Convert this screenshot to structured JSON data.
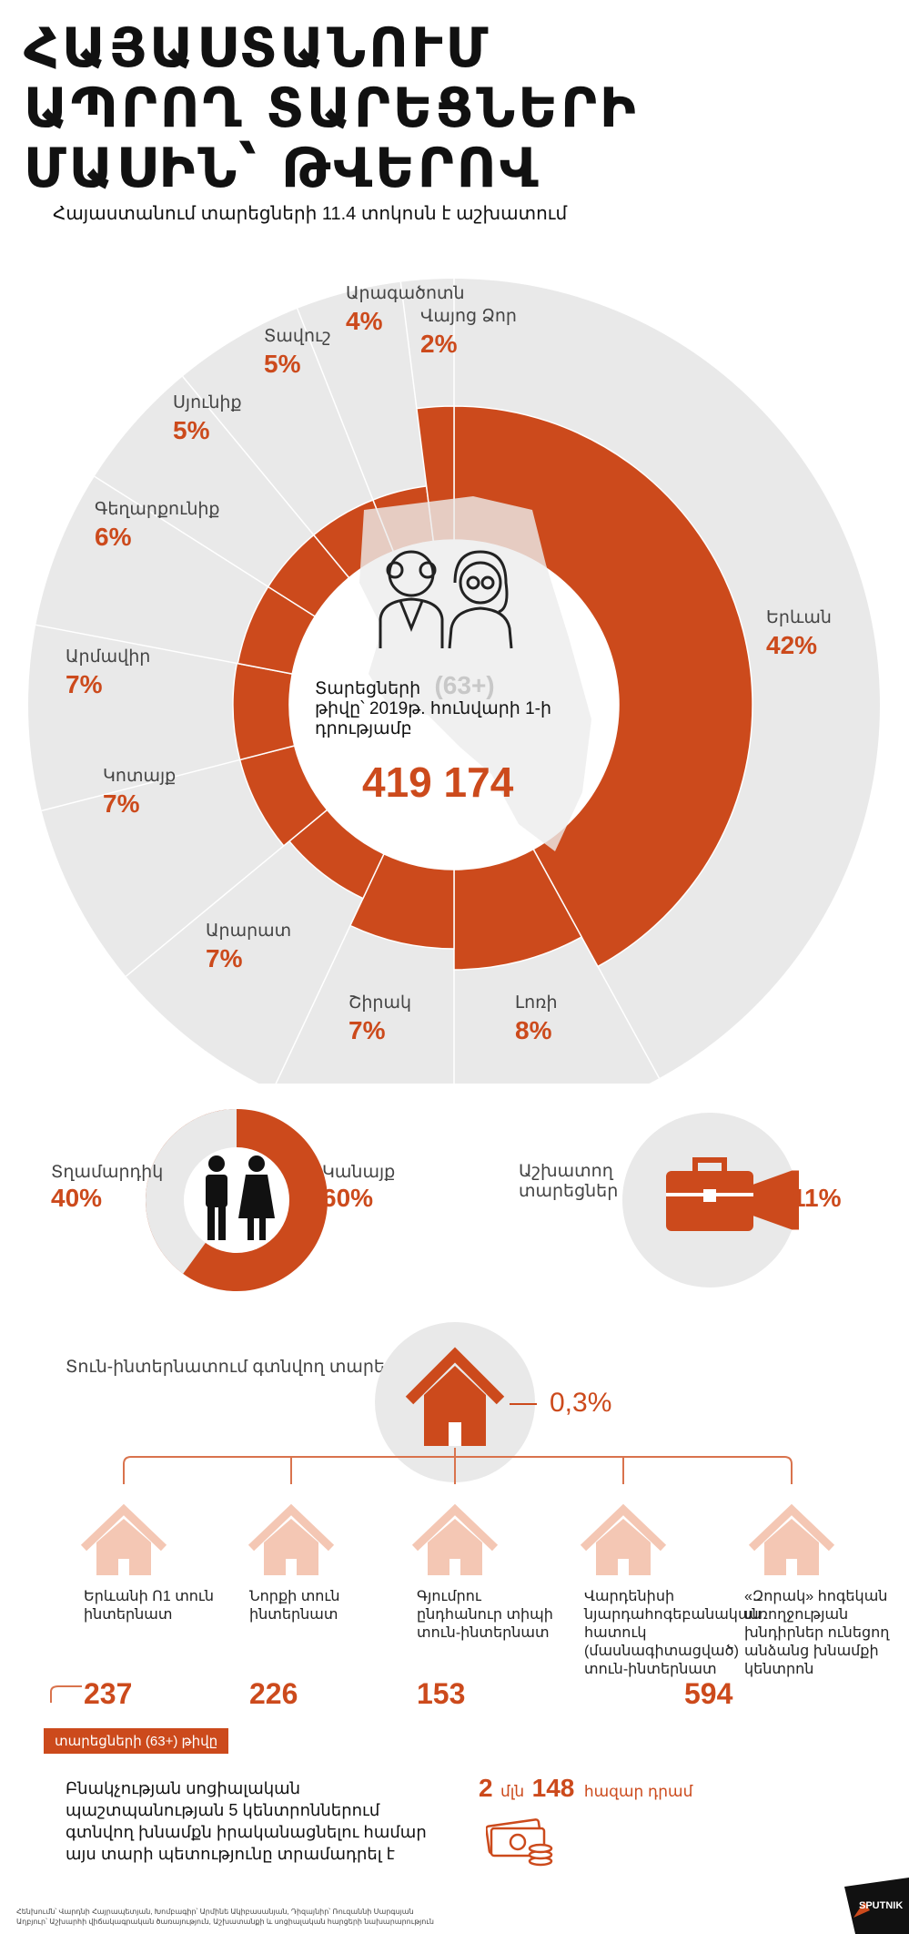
{
  "title_lines": [
    "ՀԱՅԱՍՏԱՆՈՒՄ",
    "ԱՊՐՈՂ ՏԱՐԵՑՆԵՐԻ",
    "ՄԱՍԻՆ՝ ԹՎԵՐՈՎ"
  ],
  "subtitle": "Հայաստանում տարեցների 11.4 տոկոսն է աշխատում",
  "colors": {
    "accent": "#cc4a1c",
    "light_gray": "#ededed",
    "ring_gray": "#e9e9e9"
  },
  "chart_data": {
    "type": "pie",
    "title": "Տարեցների (63+) թիվը՝ 2019թ. հունվարի 1-ի դրությամբ",
    "total": 419174,
    "slices": [
      {
        "label": "Երևան",
        "value": 42
      },
      {
        "label": "Լոռի",
        "value": 8
      },
      {
        "label": "Շիրակ",
        "value": 7
      },
      {
        "label": "Արարատ",
        "value": 7
      },
      {
        "label": "Կոտայք",
        "value": 7
      },
      {
        "label": "Արմավիր",
        "value": 7
      },
      {
        "label": "Գեղարքունիք",
        "value": 6
      },
      {
        "label": "Սյունիք",
        "value": 5
      },
      {
        "label": "Տավուշ",
        "value": 5
      },
      {
        "label": "Արագածոտն",
        "value": 4
      },
      {
        "label": "Վայոց Ձոր",
        "value": 2
      }
    ],
    "slice_pct_text": [
      "42%",
      "8%",
      "7%",
      "7%",
      "7%",
      "7%",
      "6%",
      "5%",
      "5%",
      "4%",
      "2%"
    ]
  },
  "center": {
    "line1": "Տարեցների",
    "badge": "(63+)",
    "line2": "թիվը՝ 2019թ. հունվարի 1-ի",
    "line3": "դրությամբ",
    "total_text": "419 174"
  },
  "gender": {
    "men_label": "Տղամարդիկ",
    "men_pct": "40%",
    "men_value": 40,
    "women_label": "Կանայք",
    "women_pct": "60%",
    "women_value": 60
  },
  "working": {
    "label_line1": "Աշխատող",
    "label_line2": "տարեցներ",
    "pct": "11%",
    "value": 11
  },
  "nursing": {
    "title": "Տուն-ինտերնատում գտնվող տարեցներ",
    "pct": "0,3%",
    "homes": [
      {
        "name": "Երևանի Ո1 տուն ինտերնատ",
        "count": "237"
      },
      {
        "name": "Նորքի տուն ինտերնատ",
        "count": "226"
      },
      {
        "name": "Գյումրու ընդհանուր տիպի տուն-ինտերնատ",
        "count": "153"
      },
      {
        "name": "Վարդենիսի նյարդահոգեբանական հատուկ (մասնագիտացված) տուն-ինտերնատ",
        "count": "594"
      },
      {
        "name": "«Զորակ» հոգեկան առողջության խնդիրներ ունեցող անձանց խնամքի կենտրոն",
        "count": ""
      }
    ],
    "count_tag": "տարեցների (63+) թիվը"
  },
  "budget": {
    "text": "Բնակչության սոցիալական պաշտպանության 5 կենտրոններում գտնվող խնամքն իրականացնելու համար այս տարի պետությունը տրամադրել է",
    "amount_a": "2",
    "unit_a": "մլն",
    "amount_b": "148",
    "unit_b": "հազար դրամ"
  },
  "footer": {
    "line1": "Հենխումն՝ Վարդնի Հայրապետյան, Խոմբագիր՝ Արմինե Ակիբասանյան, Դիզայնիր՝ Ռուզաննի Սարգսյան",
    "line2": "Աղբյուր՝ Աշխարհի վիճակագրական ծառայություն, Աշխատանքի և սոցիալական հարցերի նախարարություն",
    "logo": "SPUTNIK"
  }
}
